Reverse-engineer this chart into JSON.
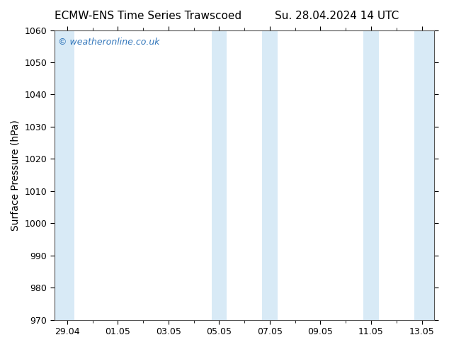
{
  "title_left": "ECMW-ENS Time Series Trawscoed",
  "title_right": "Su. 28.04.2024 14 UTC",
  "ylabel": "Surface Pressure (hPa)",
  "ylim": [
    970,
    1060
  ],
  "yticks": [
    970,
    980,
    990,
    1000,
    1010,
    1020,
    1030,
    1040,
    1050,
    1060
  ],
  "xlim": [
    -0.5,
    14.5
  ],
  "xtick_labels": [
    "29.04",
    "01.05",
    "03.05",
    "05.05",
    "07.05",
    "09.05",
    "11.05",
    "13.05"
  ],
  "xtick_positions": [
    0,
    2,
    4,
    6,
    8,
    10,
    12,
    14
  ],
  "background_color": "#ffffff",
  "plot_bg_color": "#ffffff",
  "band_color": "#d8eaf6",
  "band_ranges": [
    [
      -0.5,
      0.3
    ],
    [
      5.7,
      6.3
    ],
    [
      7.7,
      8.3
    ],
    [
      11.7,
      12.3
    ],
    [
      13.7,
      14.5
    ]
  ],
  "watermark": "© weatheronline.co.uk",
  "watermark_color": "#3377bb",
  "title_fontsize": 11,
  "label_fontsize": 10,
  "tick_fontsize": 9,
  "tick_color": "#000000",
  "spine_color": "#555555"
}
